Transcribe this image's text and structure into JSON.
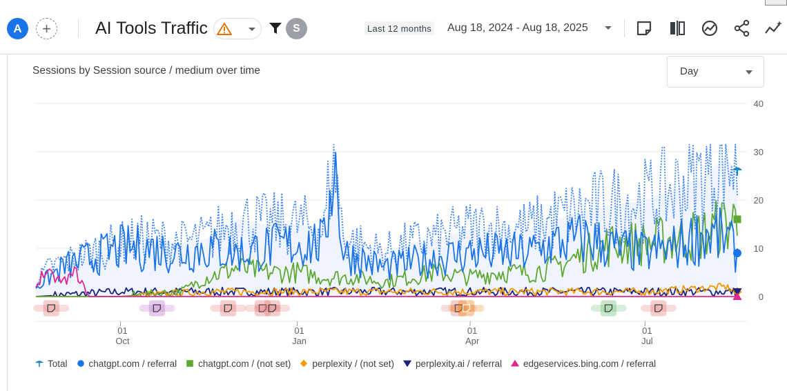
{
  "header": {
    "avatar_letter": "A",
    "add_symbol": "+",
    "title": "AI Tools Traffic",
    "filter_avatar": "S",
    "range_label": "Last 12 months",
    "date_range": "Aug 18, 2024 - Aug 18, 2025"
  },
  "toolbar_icons": [
    "note-icon",
    "compare-icon",
    "insights-icon",
    "share-icon",
    "anomaly-icon"
  ],
  "card": {
    "title": "Sessions by Session source / medium over time",
    "granularity": "Day"
  },
  "chart_data": {
    "type": "line",
    "title": "Sessions by Session source / medium over time",
    "x_start": "2024-08-18",
    "x_end": "2025-08-18",
    "x_ticks": [
      {
        "date": "2024-10-01",
        "day": "01",
        "month": "Oct"
      },
      {
        "date": "2025-01-01",
        "day": "01",
        "month": "Jan"
      },
      {
        "date": "2025-04-01",
        "day": "01",
        "month": "Apr"
      },
      {
        "date": "2025-07-01",
        "day": "01",
        "month": "Jul"
      }
    ],
    "y_ticks": [
      0,
      10,
      20,
      30,
      40
    ],
    "ylim": [
      0,
      40
    ],
    "grid": true,
    "legend_position": "bottom",
    "series": [
      {
        "name": "Total",
        "color": "#1a73e8",
        "style": "dotted",
        "marker": "pin",
        "points": [
          [
            "2024-08-18",
            3
          ],
          [
            "2024-08-25",
            6
          ],
          [
            "2024-09-01",
            7
          ],
          [
            "2024-09-15",
            9
          ],
          [
            "2024-10-01",
            11
          ],
          [
            "2024-10-15",
            12
          ],
          [
            "2024-11-01",
            11
          ],
          [
            "2024-11-15",
            12
          ],
          [
            "2024-12-01",
            16
          ],
          [
            "2024-12-15",
            15
          ],
          [
            "2025-01-01",
            15
          ],
          [
            "2025-01-15",
            14
          ],
          [
            "2025-01-20",
            31
          ],
          [
            "2025-01-25",
            12
          ],
          [
            "2025-02-01",
            11
          ],
          [
            "2025-02-15",
            9
          ],
          [
            "2025-03-01",
            11
          ],
          [
            "2025-03-15",
            12
          ],
          [
            "2025-04-01",
            14
          ],
          [
            "2025-04-15",
            14
          ],
          [
            "2025-05-01",
            14
          ],
          [
            "2025-05-15",
            16
          ],
          [
            "2025-06-01",
            18
          ],
          [
            "2025-06-15",
            19
          ],
          [
            "2025-07-01",
            20
          ],
          [
            "2025-07-15",
            22
          ],
          [
            "2025-08-01",
            25
          ],
          [
            "2025-08-12",
            29
          ],
          [
            "2025-08-18",
            26
          ]
        ]
      },
      {
        "name": "chatgpt.com / referral",
        "color": "#1a73e8",
        "style": "solid",
        "marker": "circle",
        "points": [
          [
            "2024-08-18",
            2
          ],
          [
            "2024-08-25",
            4
          ],
          [
            "2024-09-01",
            6
          ],
          [
            "2024-09-15",
            8
          ],
          [
            "2024-10-01",
            10
          ],
          [
            "2024-10-15",
            10
          ],
          [
            "2024-11-01",
            9
          ],
          [
            "2024-11-15",
            10
          ],
          [
            "2024-12-01",
            9
          ],
          [
            "2024-12-15",
            10
          ],
          [
            "2025-01-01",
            11
          ],
          [
            "2025-01-15",
            11
          ],
          [
            "2025-01-20",
            30
          ],
          [
            "2025-01-25",
            9
          ],
          [
            "2025-02-01",
            8
          ],
          [
            "2025-02-15",
            6
          ],
          [
            "2025-03-01",
            7
          ],
          [
            "2025-03-15",
            8
          ],
          [
            "2025-04-01",
            9
          ],
          [
            "2025-04-15",
            9
          ],
          [
            "2025-05-01",
            9
          ],
          [
            "2025-05-15",
            11
          ],
          [
            "2025-06-01",
            12
          ],
          [
            "2025-06-15",
            10
          ],
          [
            "2025-07-01",
            9
          ],
          [
            "2025-07-15",
            10
          ],
          [
            "2025-08-01",
            13
          ],
          [
            "2025-08-12",
            12
          ],
          [
            "2025-08-18",
            9
          ]
        ]
      },
      {
        "name": "chatgpt.com / (not set)",
        "color": "#5ea832",
        "style": "solid",
        "marker": "square",
        "points": [
          [
            "2024-08-18",
            0
          ],
          [
            "2024-09-01",
            0
          ],
          [
            "2024-10-01",
            0
          ],
          [
            "2024-11-01",
            1
          ],
          [
            "2024-11-15",
            4
          ],
          [
            "2024-12-01",
            6
          ],
          [
            "2024-12-15",
            5
          ],
          [
            "2025-01-01",
            5
          ],
          [
            "2025-01-15",
            4
          ],
          [
            "2025-02-01",
            4
          ],
          [
            "2025-02-15",
            3
          ],
          [
            "2025-03-01",
            4
          ],
          [
            "2025-03-15",
            5
          ],
          [
            "2025-04-01",
            4
          ],
          [
            "2025-04-15",
            5
          ],
          [
            "2025-05-01",
            5
          ],
          [
            "2025-05-15",
            6
          ],
          [
            "2025-06-01",
            9
          ],
          [
            "2025-06-15",
            11
          ],
          [
            "2025-07-01",
            11
          ],
          [
            "2025-07-15",
            12
          ],
          [
            "2025-08-01",
            13
          ],
          [
            "2025-08-12",
            15
          ],
          [
            "2025-08-18",
            16
          ]
        ]
      },
      {
        "name": "perplexity / (not set)",
        "color": "#f29900",
        "style": "solid",
        "marker": "diamond",
        "points": [
          [
            "2024-08-18",
            0
          ],
          [
            "2024-10-01",
            0
          ],
          [
            "2024-11-15",
            1
          ],
          [
            "2025-01-01",
            1
          ],
          [
            "2025-03-01",
            1
          ],
          [
            "2025-05-01",
            1
          ],
          [
            "2025-07-01",
            1
          ],
          [
            "2025-08-12",
            2
          ],
          [
            "2025-08-18",
            1
          ]
        ]
      },
      {
        "name": "perplexity.ai / referral",
        "color": "#1a237e",
        "style": "solid",
        "marker": "triangle-down",
        "points": [
          [
            "2024-08-18",
            0
          ],
          [
            "2024-10-01",
            1
          ],
          [
            "2024-12-01",
            1
          ],
          [
            "2025-02-01",
            1
          ],
          [
            "2025-04-01",
            1
          ],
          [
            "2025-06-01",
            1
          ],
          [
            "2025-08-18",
            1
          ]
        ]
      },
      {
        "name": "edgeservices.bing.com / referral",
        "color": "#e52592",
        "style": "solid",
        "marker": "triangle-up",
        "points": [
          [
            "2024-08-18",
            2
          ],
          [
            "2024-08-22",
            5
          ],
          [
            "2024-08-27",
            4
          ],
          [
            "2024-09-01",
            3
          ],
          [
            "2024-09-08",
            5
          ],
          [
            "2024-09-12",
            2
          ],
          [
            "2024-09-15",
            0
          ],
          [
            "2025-08-18",
            0
          ]
        ]
      }
    ],
    "annotations": [
      {
        "date": "2024-08-26",
        "color": "#e57373",
        "count": 1
      },
      {
        "date": "2024-10-20",
        "color": "#ba68c8",
        "count": 1
      },
      {
        "date": "2024-11-26",
        "color": "#e57373",
        "count": 1
      },
      {
        "date": "2024-12-14",
        "color": "#e57373",
        "count": 1
      },
      {
        "date": "2024-12-19",
        "color": "#e57373",
        "count": 1
      },
      {
        "date": "2025-03-26",
        "color": "#e57373",
        "count": 1
      },
      {
        "date": "2025-03-30",
        "color": "#f57c00",
        "count": 1
      },
      {
        "date": "2025-06-12",
        "color": "#66bb6a",
        "count": 1
      },
      {
        "date": "2025-07-08",
        "color": "#e57373",
        "count": 1
      }
    ]
  }
}
